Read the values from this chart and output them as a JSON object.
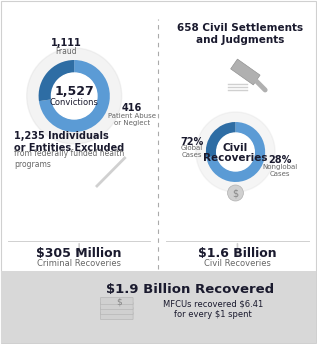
{
  "white": "#ffffff",
  "light_gray": "#d0d0d0",
  "mid_gray": "#b0b0b0",
  "dark_gray": "#888888",
  "blue_dark": "#2e6da4",
  "blue_mid": "#5b9bd5",
  "text_dark": "#1a1a2e",
  "text_light": "#666666",
  "dashed_color": "#aaaaaa",
  "bottom_bg": "#d8d8d8",
  "conviction_total": "1,527",
  "conviction_label": "Convictions",
  "fraud_num": "1,111",
  "fraud_label": "Fraud",
  "abuse_num": "416",
  "abuse_label": "Patient Abuse\nor Neglect",
  "fraud_pct": 72.7,
  "abuse_pct": 27.3,
  "excluded_bold": "1,235 Individuals\nor Entities Excluded",
  "excluded_sub": "from federally funded health\nprograms",
  "criminal_amount": "$305 Million",
  "criminal_label": "Criminal Recoveries",
  "civil_num": "658 Civil Settlements\nand Judgments",
  "civil_center_top": "Civil",
  "civil_center_bot": "Recoveries",
  "global_pct": "72%",
  "global_label": "Global\nCases",
  "nonglobal_pct": "28%",
  "nonglobal_label": "Nonglobal\nCases",
  "global_slice": 72,
  "nonglobal_slice": 28,
  "civil_amount": "$1.6 Billion",
  "civil_label": "Civil Recoveries",
  "bottom_bold": "$1.9 Billion Recovered",
  "bottom_sub": "MFCUs recovered $6.41\nfor every $1 spent"
}
